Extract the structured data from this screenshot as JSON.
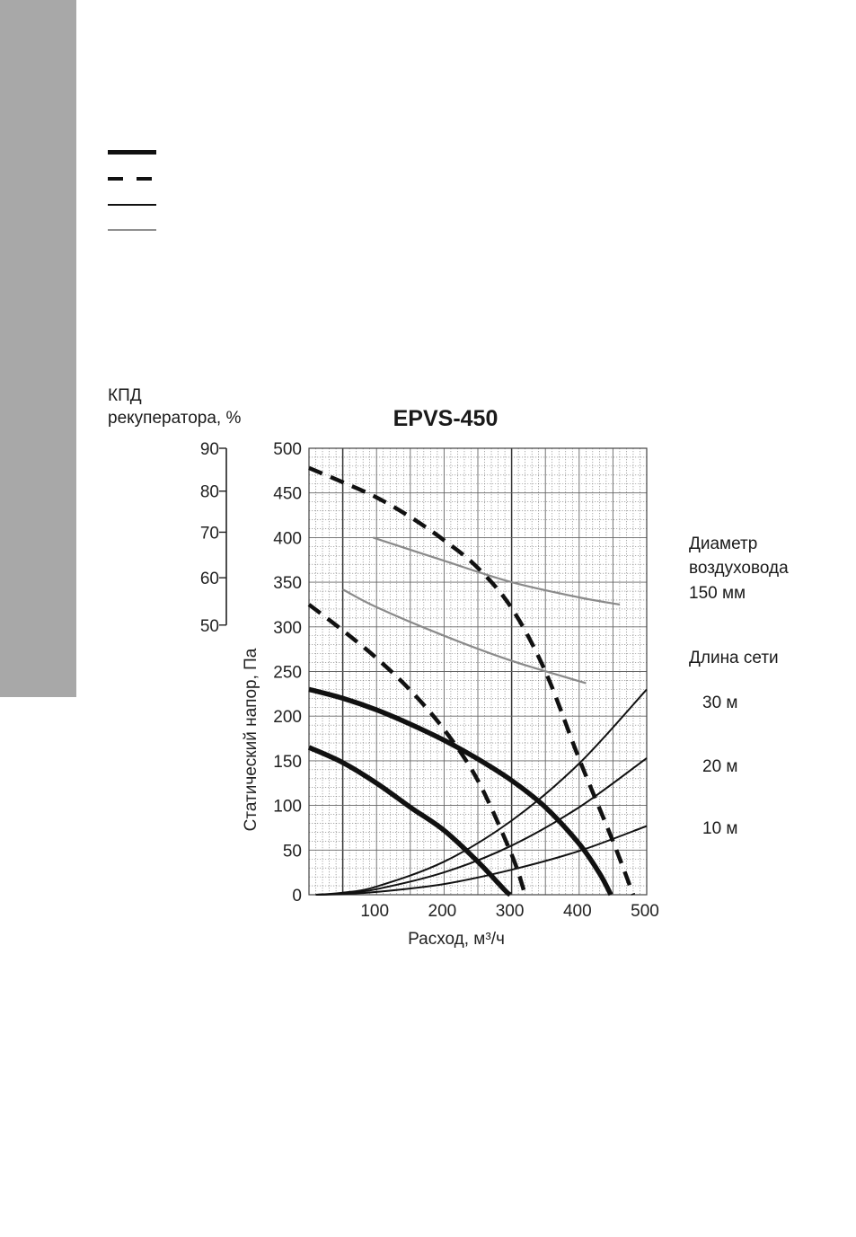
{
  "chart_data": {
    "type": "line",
    "title": "EPVS-450",
    "xlabel": "Расход, м³/ч",
    "ylabel": "Статический напор, Па",
    "xlim": [
      0,
      500
    ],
    "ylim": [
      0,
      500
    ],
    "x_ticks": [
      "100",
      "200",
      "300",
      "400",
      "500"
    ],
    "y_ticks": [
      "0",
      "50",
      "100",
      "150",
      "200",
      "250",
      "300",
      "350",
      "400",
      "450",
      "500"
    ],
    "secondary_axis": {
      "label_line1": "КПД",
      "label_line2": "рекуператора, %",
      "ticks": [
        {
          "label": "90",
          "value": 90,
          "y": 500
        },
        {
          "label": "80",
          "value": 80,
          "y": 452
        },
        {
          "label": "70",
          "value": 70,
          "y": 406
        },
        {
          "label": "60",
          "value": 60,
          "y": 355
        },
        {
          "label": "50",
          "value": 50,
          "y": 302
        }
      ]
    },
    "grid": true,
    "legend": {
      "position": "top-left",
      "styles": [
        "solid-thick",
        "dashed-thick",
        "solid-thin",
        "solid-gray"
      ]
    },
    "annotations": {
      "duct_line1": "Диаметр",
      "duct_line2": "воздуховода",
      "duct_line3": "150 мм",
      "network_title": "Длина сети",
      "network_30": "30 м",
      "network_20": "20 м",
      "network_10": "10 м"
    },
    "series": [
      {
        "style": "solid-thick",
        "x": [
          0,
          50,
          100,
          150,
          200,
          250,
          290,
          298
        ],
        "y": [
          165,
          148,
          125,
          98,
          72,
          37,
          5,
          0
        ]
      },
      {
        "style": "solid-thick",
        "x": [
          0,
          50,
          100,
          150,
          200,
          250,
          300,
          350,
          400,
          430,
          447
        ],
        "y": [
          230,
          220,
          207,
          191,
          173,
          152,
          128,
          98,
          57,
          24,
          0
        ]
      },
      {
        "style": "dashed-thick",
        "x": [
          0,
          50,
          100,
          150,
          200,
          250,
          300,
          320
        ],
        "y": [
          325,
          296,
          265,
          229,
          185,
          128,
          45,
          0
        ]
      },
      {
        "style": "dashed-thick",
        "x": [
          0,
          50,
          100,
          150,
          200,
          250,
          300,
          350,
          400,
          450,
          480
        ],
        "y": [
          478,
          462,
          445,
          423,
          397,
          366,
          321,
          250,
          152,
          60,
          0
        ]
      },
      {
        "style": "solid-thin",
        "x": [
          10,
          50,
          100,
          200,
          300,
          400,
          500
        ],
        "y": [
          0,
          2.3,
          9.2,
          37,
          83,
          147,
          230
        ]
      },
      {
        "style": "solid-thin",
        "x": [
          10,
          50,
          100,
          200,
          300,
          400,
          500
        ],
        "y": [
          0,
          1.5,
          6.2,
          25,
          55,
          98,
          153
        ]
      },
      {
        "style": "solid-thin",
        "x": [
          10,
          50,
          100,
          200,
          300,
          400,
          500
        ],
        "y": [
          0,
          0.8,
          3.1,
          12,
          28,
          49,
          77
        ]
      },
      {
        "style": "solid-gray",
        "x": [
          95,
          200,
          300,
          400,
          460
        ],
        "y": [
          400,
          374,
          350,
          333,
          325
        ]
      },
      {
        "style": "solid-gray",
        "x": [
          50,
          100,
          200,
          300,
          410
        ],
        "y": [
          342,
          322,
          290,
          262,
          237
        ]
      }
    ]
  }
}
